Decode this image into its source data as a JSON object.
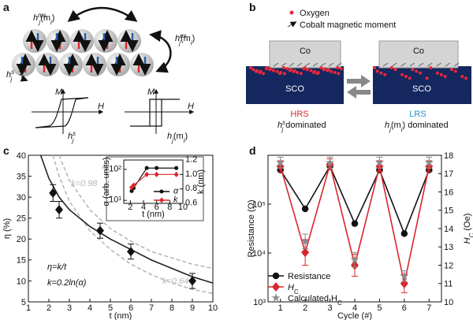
{
  "panel_labels": {
    "a": "a",
    "b": "b",
    "c": "c",
    "d": "d"
  },
  "diagram_a": {
    "h_ms": {
      "base": "h",
      "sup": "ms",
      "sub": "j",
      "arg": "(m",
      "arg_sub": "i",
      "close": ")"
    },
    "h_ex": {
      "base": "h",
      "sup": "ex",
      "sub": "j",
      "arg": "(m",
      "arg_sub": "i",
      "close": ")"
    },
    "h_s": {
      "base": "h",
      "sup": "s",
      "sub": "j"
    },
    "axis_m": "M",
    "axis_h": "H",
    "loop_left": {
      "base": "h",
      "sup": "s",
      "sub": "j"
    },
    "loop_right": {
      "base": "h",
      "sub": "j",
      "arg": "(m",
      "arg_sub": "i",
      "close": ")"
    }
  },
  "diagram_b": {
    "legend_oxygen": "Oxygen",
    "legend_cobalt": "Cobalt magnetic moment",
    "co": "Co",
    "sco": "SCO",
    "hrs": "HRS",
    "hrs_desc": {
      "base": "h",
      "sup": "s",
      "sub": "j",
      "close": " dominated"
    },
    "lrs": "LRS",
    "lrs_desc": {
      "base": "h",
      "sub": "j",
      "arg": "(m",
      "arg_sub": "i",
      "close": ") dominated"
    }
  },
  "chart_data": [
    {
      "type": "scatter",
      "xlabel": "t (nm)",
      "ylabel": "η (%)",
      "xlim": [
        1,
        10
      ],
      "xticks": [
        1,
        2,
        3,
        4,
        5,
        6,
        7,
        8,
        9,
        10
      ],
      "ylim": [
        5,
        40
      ],
      "yticks": [
        5,
        10,
        15,
        20,
        25,
        30,
        35,
        40
      ],
      "annotations": [
        "η=k/t",
        "k=0.2ln(α)"
      ],
      "series": [
        {
          "name": "k=0.98",
          "color": "#b8b8b8",
          "line": "dashed",
          "marker": "none",
          "x": [
            2.5,
            3,
            4,
            5,
            6,
            7,
            8,
            9,
            10
          ],
          "values": [
            40,
            34,
            27,
            22.5,
            19.5,
            17,
            15.5,
            14,
            13
          ]
        },
        {
          "name": "k=0.64",
          "color": "#b8b8b8",
          "line": "dashed",
          "marker": "none",
          "x": [
            2.2,
            2.5,
            3,
            4,
            5,
            6,
            7,
            8,
            9,
            10
          ],
          "values": [
            40,
            35,
            29,
            22,
            17.5,
            14,
            11.5,
            9.5,
            8,
            7
          ]
        },
        {
          "color": "#222222",
          "line": "solid",
          "marker": "none",
          "x": [
            1.6,
            2,
            2.5,
            3,
            4,
            5,
            6,
            7,
            8,
            9,
            10
          ],
          "values": [
            40,
            34.5,
            30,
            27,
            23,
            20,
            17.5,
            15,
            13,
            11,
            9.5
          ]
        },
        {
          "color": "#111111",
          "line": "none",
          "marker": "diamond",
          "x": [
            2.2,
            2.5,
            4.5,
            6,
            9
          ],
          "values": [
            31,
            27,
            22,
            17,
            10
          ],
          "errors": [
            2,
            2,
            1.8,
            1.8,
            1.8
          ]
        }
      ]
    },
    {
      "type": "line",
      "xlabel": "t (nm)",
      "ylabel": "α (arb. units)",
      "y2label": "k (nm)",
      "xlim": [
        1,
        10
      ],
      "xticks": [
        2,
        4,
        6,
        8,
        10
      ],
      "ylog": true,
      "ylim": [
        8,
        200
      ],
      "yticks": [
        {
          "value": 10,
          "label": "10¹"
        },
        {
          "value": 100,
          "label": "10²"
        }
      ],
      "y2lim": [
        0.6,
        1.2
      ],
      "y2ticks": [
        0.6,
        0.8,
        {
          "value": 1,
          "label": "1.0"
        },
        1.2
      ],
      "legend": "lower right",
      "series": [
        {
          "name": "α",
          "color": "#111111",
          "line": "solid",
          "marker": "circle",
          "x": [
            2.2,
            2.5,
            4.5,
            6,
            9
          ],
          "values": [
            20,
            25,
            110,
            110,
            110
          ]
        },
        {
          "name": "k",
          "color": "#d9262c",
          "line": "solid",
          "marker": "diamond",
          "axis": "y2",
          "x": [
            2.2,
            2.5,
            4.5,
            6,
            9
          ],
          "values": [
            0.82,
            0.85,
            1.0,
            1.0,
            1.0
          ]
        }
      ]
    },
    {
      "type": "line",
      "xlabel": "Cycle (#)",
      "ylabel": "Resistance (Ω)",
      "y2label": {
        "base": "H",
        "sub": "C",
        "close": " (Oe)"
      },
      "xlim": [
        0.5,
        7.5
      ],
      "xticks": [
        1,
        2,
        3,
        4,
        5,
        6,
        7
      ],
      "ylog": true,
      "ylim": [
        1000,
        1000000
      ],
      "yticks": [
        {
          "value": 1000,
          "label": "10³"
        },
        {
          "value": 10000,
          "label": "10⁴"
        },
        {
          "value": 100000,
          "label": "10⁵"
        }
      ],
      "y2lim": [
        10,
        18
      ],
      "y2ticks": [
        10,
        11,
        12,
        13,
        14,
        15,
        16,
        17,
        18
      ],
      "legend": "lower left",
      "series": [
        {
          "name": "Resistance",
          "color": "#111111",
          "line": "solid",
          "marker": "circle",
          "x": [
            1,
            2,
            3,
            4,
            5,
            6,
            7
          ],
          "values": [
            500000,
            80000,
            600000,
            40000,
            500000,
            25000,
            500000
          ]
        },
        {
          "name": "H",
          "name_sub": "C",
          "color": "#d9262c",
          "line": "solid",
          "marker": "diamond",
          "axis": "y2",
          "x": [
            1,
            2,
            3,
            4,
            5,
            6,
            7
          ],
          "values": [
            17.4,
            12.7,
            17.5,
            12.0,
            17.4,
            11.0,
            17.4
          ],
          "errors": [
            0.3,
            0.7,
            0.3,
            0.6,
            0.3,
            0.5,
            0.3
          ]
        },
        {
          "name": "Calculated H",
          "name_sub": "C",
          "color": "#8c8c8c",
          "line": "none",
          "marker": "star",
          "axis": "y2",
          "x": [
            1,
            2,
            3,
            4,
            5,
            6,
            7
          ],
          "values": [
            17.6,
            13.3,
            17.6,
            12.3,
            17.6,
            11.4,
            17.6
          ],
          "errors": [
            0.3,
            0.4,
            0.3,
            0.4,
            0.3,
            0.3,
            0.3
          ]
        }
      ]
    }
  ]
}
